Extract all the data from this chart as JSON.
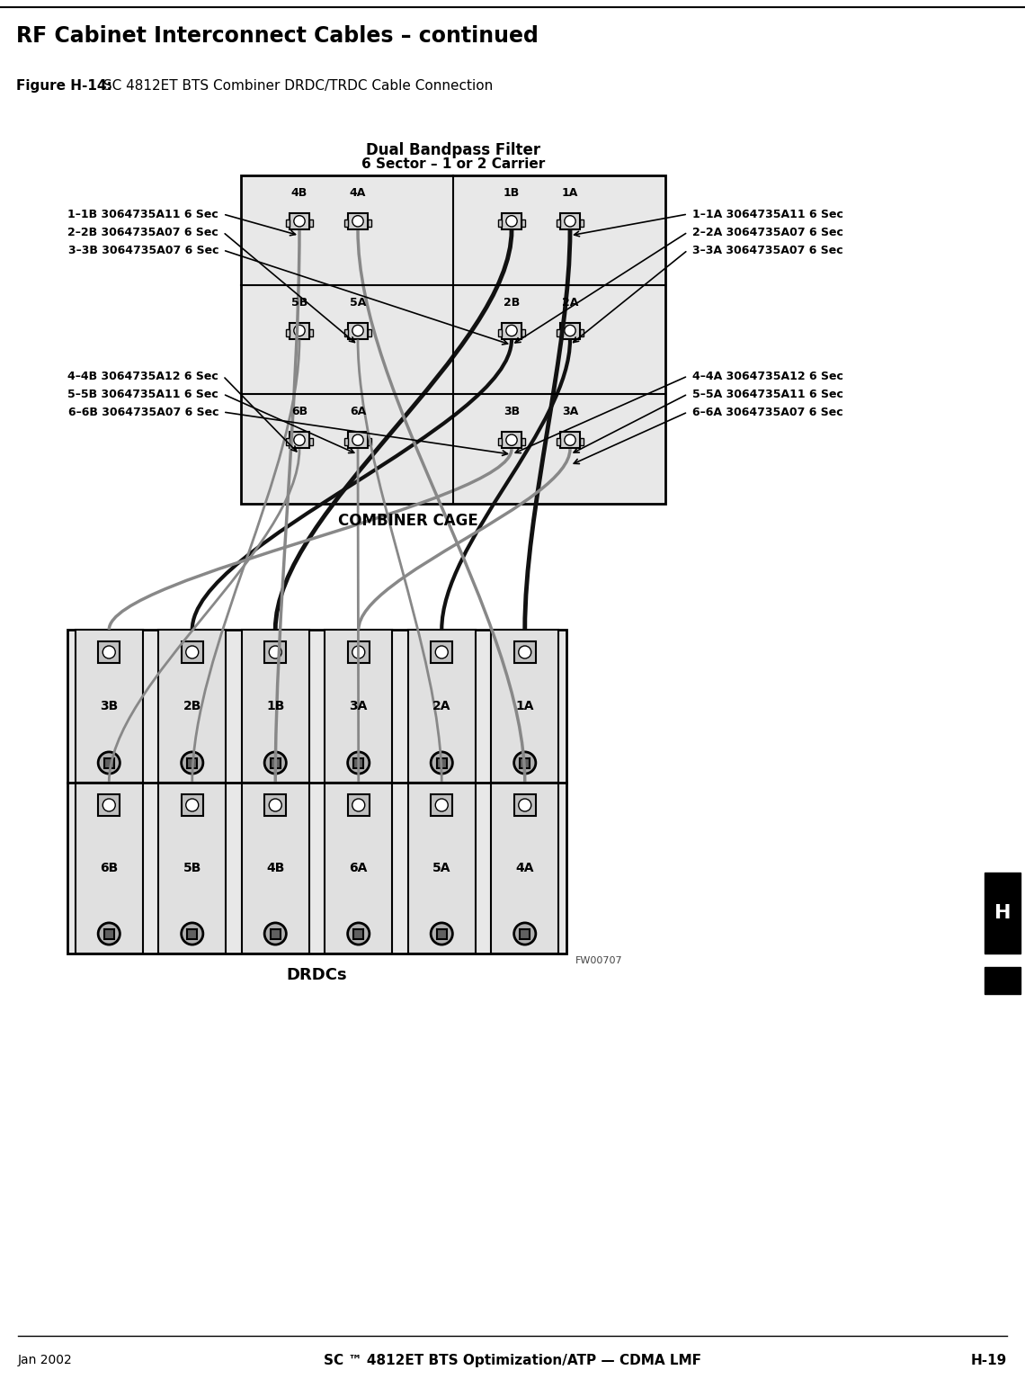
{
  "page_title": "RF Cabinet Interconnect Cables – continued",
  "figure_label": "Figure H-14:",
  "figure_title": " SC 4812ET BTS Combiner DRDC/TRDC Cable Connection",
  "filter_title_line1": "Dual Bandpass Filter",
  "filter_title_line2": "6 Sector – 1 or 2 Carrier",
  "combiner_label": "COMBINER CAGE",
  "drdc_label": "DRDCs",
  "fw_label": "FW00707",
  "footer_left": "Jan 2002",
  "footer_center": "SC ™ 4812ET BTS Optimization/ATP — CDMA LMF",
  "footer_right": "H-19",
  "top_row_labels": [
    "4B",
    "4A",
    "1B",
    "1A"
  ],
  "mid_row_labels": [
    "5B",
    "5A",
    "2B",
    "2A"
  ],
  "bot_row_labels": [
    "6B",
    "6A",
    "3B",
    "3A"
  ],
  "drdc_top_labels": [
    "3B",
    "2B",
    "1B",
    "3A",
    "2A",
    "1A"
  ],
  "drdc_bot_labels": [
    "6B",
    "5B",
    "4B",
    "6A",
    "5A",
    "4A"
  ],
  "left_labels_top": [
    "1–1B 3064735A11 6 Sec",
    "2–2B 3064735A07 6 Sec",
    "3–3B 3064735A07 6 Sec"
  ],
  "left_labels_bot": [
    "4–4B 3064735A12 6 Sec",
    "5–5B 3064735A11 6 Sec",
    "6–6B 3064735A07 6 Sec"
  ],
  "right_labels_top": [
    "1–1A 3064735A11 6 Sec",
    "2–2A 3064735A07 6 Sec",
    "3–3A 3064735A07 6 Sec"
  ],
  "right_labels_bot": [
    "4–4A 3064735A12 6 Sec",
    "5–5A 3064735A11 6 Sec",
    "6–6A 3064735A07 6 Sec"
  ],
  "bg_color": "#ffffff",
  "box_color": "#000000",
  "connector_fill": "#d0d0d0",
  "cable_dark": "#1a1a1a",
  "cable_light": "#888888"
}
